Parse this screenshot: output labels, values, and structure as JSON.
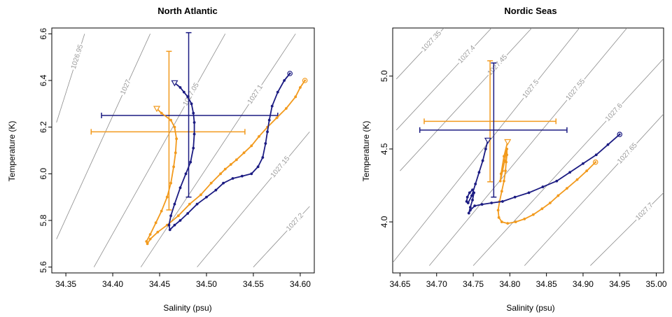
{
  "chart_data": [
    {
      "type": "line",
      "title": "North Atlantic",
      "xlabel": "Salinity (psu)",
      "ylabel": "Temperature (K)",
      "xlim": [
        34.335,
        34.615
      ],
      "ylim": [
        5.575,
        6.625
      ],
      "xticks": [
        "34.35",
        "34.40",
        "34.45",
        "34.50",
        "34.55",
        "34.60"
      ],
      "yticks": [
        "5.6",
        "5.8",
        "6.0",
        "6.2",
        "6.4",
        "6.6"
      ],
      "grid": false,
      "density_contours": [
        {
          "label": "1026.95",
          "x": [
            34.34,
            34.37
          ],
          "y": [
            6.22,
            6.6
          ]
        },
        {
          "label": "1027",
          "x": [
            34.34,
            34.44
          ],
          "y": [
            5.72,
            6.6
          ]
        },
        {
          "label": "1027.05",
          "x": [
            34.38,
            34.52
          ],
          "y": [
            5.6,
            6.6
          ]
        },
        {
          "label": "1027.1",
          "x": [
            34.43,
            34.595
          ],
          "y": [
            5.6,
            6.6
          ]
        },
        {
          "label": "1027.15",
          "x": [
            34.49,
            34.61
          ],
          "y": [
            5.6,
            6.18
          ]
        },
        {
          "label": "1027.2",
          "x": [
            34.55,
            34.61
          ],
          "y": [
            5.6,
            5.86
          ]
        }
      ],
      "series": [
        {
          "color": "#f29a1d",
          "x": [
            34.605,
            34.6,
            34.595,
            34.585,
            34.575,
            34.565,
            34.556,
            34.548,
            34.54,
            34.532,
            34.526,
            34.52,
            34.515,
            34.505,
            34.494,
            34.482,
            34.47,
            34.458,
            34.448,
            34.44,
            34.437,
            34.436,
            34.44,
            34.446,
            34.452,
            34.458,
            34.462,
            34.465,
            34.467,
            34.468,
            34.466,
            34.462,
            34.452,
            34.447
          ],
          "y": [
            6.4,
            6.37,
            6.33,
            6.28,
            6.24,
            6.2,
            6.16,
            6.12,
            6.09,
            6.06,
            6.04,
            6.02,
            6.0,
            5.96,
            5.91,
            5.87,
            5.82,
            5.78,
            5.75,
            5.72,
            5.7,
            5.71,
            5.74,
            5.79,
            5.84,
            5.9,
            5.96,
            6.03,
            6.09,
            6.15,
            6.2,
            6.23,
            6.26,
            6.28
          ]
        },
        {
          "color": "#1b1b82",
          "x": [
            34.589,
            34.583,
            34.576,
            34.57,
            34.567,
            34.565,
            34.563,
            34.56,
            34.555,
            34.548,
            34.538,
            34.528,
            34.518,
            34.51,
            34.5,
            34.49,
            34.48,
            34.472,
            34.466,
            34.461,
            34.46,
            34.462,
            34.466,
            34.472,
            34.478,
            34.483,
            34.486,
            34.487,
            34.487,
            34.486,
            34.484,
            34.48,
            34.476,
            34.472,
            34.466
          ],
          "y": [
            6.43,
            6.4,
            6.35,
            6.29,
            6.23,
            6.18,
            6.13,
            6.07,
            6.03,
            6.0,
            5.99,
            5.98,
            5.96,
            5.93,
            5.9,
            5.87,
            5.83,
            5.8,
            5.78,
            5.76,
            5.78,
            5.82,
            5.87,
            5.94,
            6.0,
            6.05,
            6.11,
            6.17,
            6.22,
            6.26,
            6.3,
            6.33,
            6.35,
            6.37,
            6.39
          ]
        }
      ],
      "error_bars": [
        {
          "color": "#f29a1d",
          "center": [
            34.46,
            6.18
          ],
          "xerr": [
            34.377,
            34.541
          ],
          "yerr": [
            5.845,
            6.525
          ]
        },
        {
          "color": "#1b1b82",
          "center": [
            34.481,
            6.25
          ],
          "xerr": [
            34.388,
            34.576
          ],
          "yerr": [
            5.9,
            6.605
          ]
        }
      ]
    },
    {
      "type": "line",
      "title": "Nordic Seas",
      "xlabel": "Salinity (psu)",
      "ylabel": "Temperature (K)",
      "xlim": [
        34.64,
        35.01
      ],
      "ylim": [
        3.65,
        5.33
      ],
      "xticks": [
        "34.65",
        "34.70",
        "34.75",
        "34.80",
        "34.85",
        "34.90",
        "34.95",
        "35.00"
      ],
      "yticks": [
        "4.0",
        "4.5",
        "5.0"
      ],
      "grid": false,
      "density_contours": [
        {
          "label": "1027.35",
          "x": [
            34.645,
            34.71
          ],
          "y": [
            4.98,
            5.33
          ]
        },
        {
          "label": "1027.4",
          "x": [
            34.645,
            34.775
          ],
          "y": [
            4.63,
            5.33
          ]
        },
        {
          "label": "1027.45",
          "x": [
            34.65,
            34.83
          ],
          "y": [
            4.35,
            5.33
          ]
        },
        {
          "label": "1027.5",
          "x": [
            34.64,
            34.895
          ],
          "y": [
            3.72,
            5.33
          ]
        },
        {
          "label": "1027.55",
          "x": [
            34.69,
            34.96
          ],
          "y": [
            3.7,
            5.33
          ]
        },
        {
          "label": "1027.6",
          "x": [
            34.75,
            35.01
          ],
          "y": [
            3.7,
            5.12
          ]
        },
        {
          "label": "1027.65",
          "x": [
            34.82,
            35.01
          ],
          "y": [
            3.7,
            4.74
          ]
        },
        {
          "label": "1027.7",
          "x": [
            34.91,
            35.01
          ],
          "y": [
            3.7,
            4.2
          ]
        }
      ],
      "series": [
        {
          "color": "#f29a1d",
          "x": [
            34.917,
            34.905,
            34.892,
            34.878,
            34.866,
            34.855,
            34.844,
            34.832,
            34.82,
            34.808,
            34.797,
            34.789,
            34.785,
            34.784,
            34.786,
            34.789,
            34.792,
            34.794,
            34.795,
            34.796,
            34.796,
            34.795,
            34.793,
            34.79,
            34.787,
            34.788,
            34.792,
            34.797
          ],
          "y": [
            4.41,
            4.35,
            4.29,
            4.23,
            4.18,
            4.13,
            4.09,
            4.05,
            4.02,
            4.0,
            3.99,
            4.0,
            4.03,
            4.08,
            4.14,
            4.21,
            4.28,
            4.35,
            4.41,
            4.46,
            4.5,
            4.48,
            4.42,
            4.35,
            4.28,
            4.33,
            4.45,
            4.55
          ]
        },
        {
          "color": "#1b1b82",
          "x": [
            34.95,
            34.934,
            34.918,
            34.9,
            34.882,
            34.864,
            34.845,
            34.826,
            34.807,
            34.79,
            34.775,
            34.762,
            34.752,
            34.746,
            34.744,
            34.746,
            34.749,
            34.751,
            34.749,
            34.745,
            34.742,
            34.741,
            34.743,
            34.748,
            34.753,
            34.758,
            34.763,
            34.767,
            34.77
          ],
          "y": [
            4.6,
            4.53,
            4.46,
            4.4,
            4.34,
            4.28,
            4.24,
            4.2,
            4.17,
            4.14,
            4.13,
            4.12,
            4.11,
            4.08,
            4.06,
            4.1,
            4.15,
            4.2,
            4.22,
            4.2,
            4.17,
            4.14,
            4.13,
            4.18,
            4.26,
            4.34,
            4.42,
            4.5,
            4.56
          ]
        }
      ],
      "error_bars": [
        {
          "color": "#f29a1d",
          "center": [
            34.773,
            4.69
          ],
          "xerr": [
            34.683,
            34.863
          ],
          "yerr": [
            4.275,
            5.105
          ]
        },
        {
          "color": "#1b1b82",
          "center": [
            34.778,
            4.63
          ],
          "xerr": [
            34.677,
            34.878
          ],
          "yerr": [
            4.17,
            5.09
          ]
        }
      ]
    }
  ]
}
